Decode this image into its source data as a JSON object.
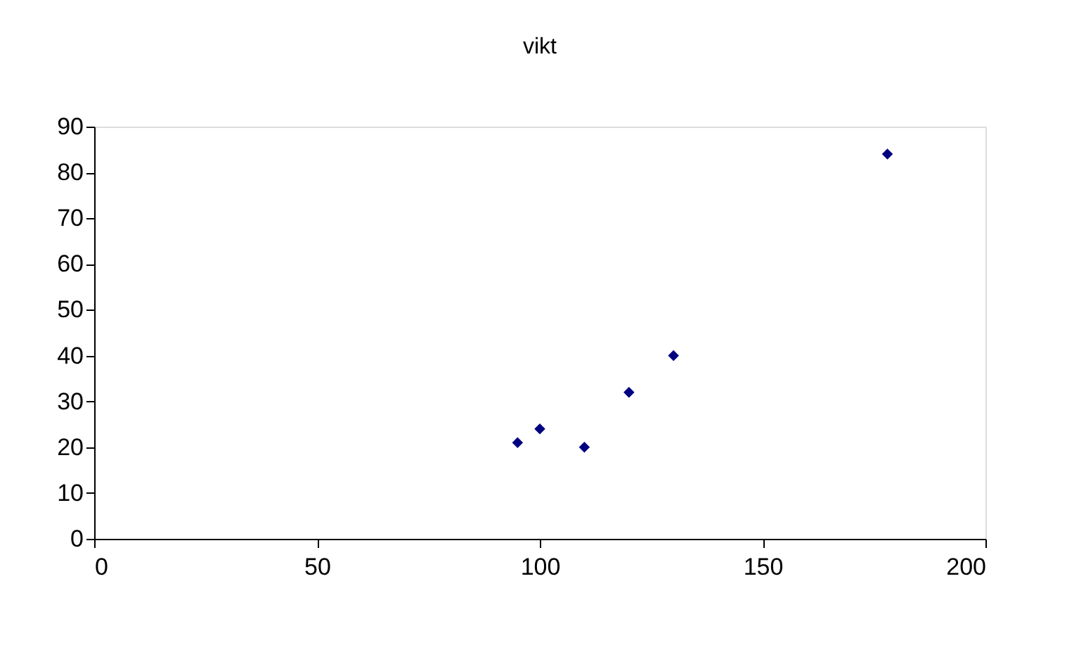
{
  "chart_data": {
    "type": "scatter",
    "title": "vikt",
    "x": [
      95,
      100,
      110,
      120,
      130,
      178
    ],
    "series": [
      {
        "color": "#000080",
        "values": [
          21,
          24,
          20,
          32,
          40,
          84
        ]
      }
    ],
    "xlim": [
      0,
      200
    ],
    "xticks": [
      0,
      50,
      100,
      150,
      200
    ],
    "ylim": [
      0,
      90
    ],
    "yticks": [
      0,
      10,
      20,
      30,
      40,
      50,
      60,
      70,
      80,
      90
    ],
    "marker": "diamond",
    "grid": false,
    "legend": false
  }
}
